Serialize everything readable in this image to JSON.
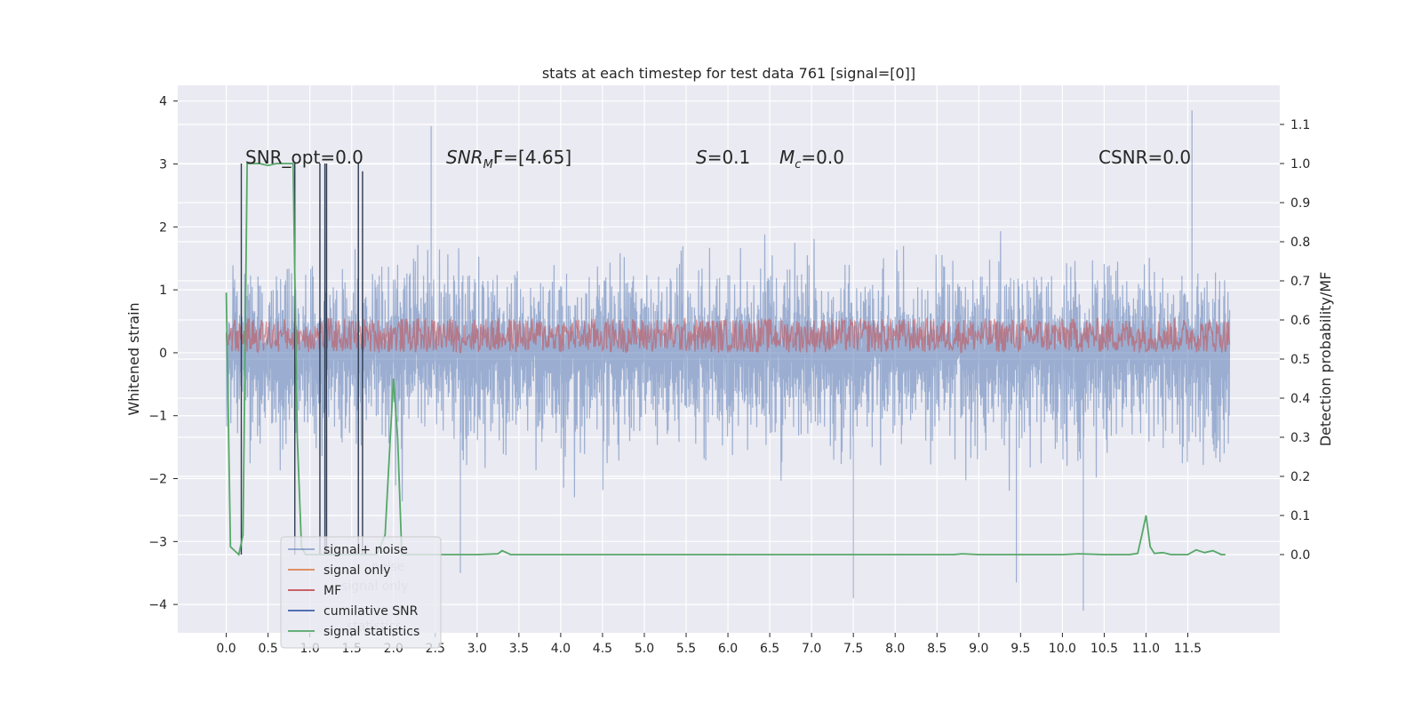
{
  "chart_data": {
    "type": "line",
    "title": "stats at each timestep for test data 761 [signal=[0]]",
    "xlabel": "",
    "ylabel": "Whitened strain",
    "y2label": "Detection probability/MF",
    "xlim": [
      -0.58,
      12.6
    ],
    "ylim": [
      -4.45,
      4.25
    ],
    "y2lim": [
      -0.2,
      1.2
    ],
    "xticks": [
      "0.0",
      "0.5",
      "1.0",
      "1.5",
      "2.0",
      "2.5",
      "3.0",
      "3.5",
      "4.0",
      "4.5",
      "5.0",
      "5.5",
      "6.0",
      "6.5",
      "7.0",
      "7.5",
      "8.0",
      "8.5",
      "9.0",
      "9.5",
      "10.0",
      "10.5",
      "11.0",
      "11.5"
    ],
    "yticks": [
      "4",
      "3",
      "2",
      "1",
      "0",
      "−1",
      "−2",
      "−3",
      "−4"
    ],
    "y2ticks": [
      "1.1",
      "1.0",
      "0.9",
      "0.8",
      "0.7",
      "0.6",
      "0.5",
      "0.4",
      "0.3",
      "0.2",
      "0.1",
      "0.0"
    ],
    "grid": true,
    "legend_position": "lower-left",
    "annotations": {
      "snr_opt": "SNR_opt=0.0",
      "snr_mf_sym": "SNR",
      "snr_mf_sub": "M",
      "snr_mf_rest": "F=[4.65]",
      "s_sym": "S",
      "s_rest": "=0.1",
      "mc_sym": "M",
      "mc_sub": "c",
      "mc_rest": "=0.0",
      "csnr": "CSNR=0.0"
    },
    "legend": [
      {
        "label": "signal+ noise",
        "color": "#4c72b0"
      },
      {
        "label": "signal only",
        "color": "#dd8452"
      },
      {
        "label": "MF",
        "color": "#c44e52"
      },
      {
        "label": "cumilative SNR",
        "color": "#3b5ea8"
      },
      {
        "label": "signal statistics",
        "color": "#55a868"
      }
    ],
    "ghost_legend": [
      "noise",
      "signal only",
      "statistics"
    ],
    "series": [
      {
        "name": "signal+ noise",
        "axis": "left",
        "color": "#4c72b0",
        "t_range": [
          0.0,
          12.0
        ],
        "y_range": [
          -4.1,
          3.85
        ],
        "envelope": {
          "upper_typical": 2.0,
          "lower_typical": -2.3,
          "core_upper": 1.1,
          "core_lower": -1.35
        },
        "peaks": [
          {
            "x": 2.45,
            "y": 3.6
          },
          {
            "x": 11.55,
            "y": 3.85
          },
          {
            "x": 7.5,
            "y": -3.9
          },
          {
            "x": 10.25,
            "y": -4.1
          },
          {
            "x": 9.45,
            "y": -3.65
          },
          {
            "x": 2.8,
            "y": -3.5
          }
        ]
      },
      {
        "name": "MF",
        "axis": "left",
        "color": "#c44e52",
        "t_range": [
          0.0,
          12.0
        ],
        "band": [
          0.0,
          0.55
        ]
      },
      {
        "name": "signal statistics",
        "axis": "right",
        "color": "#55a868",
        "x": [
          0.0,
          0.05,
          0.1,
          0.15,
          0.2,
          0.25,
          0.3,
          0.35,
          0.4,
          0.5,
          0.6,
          0.7,
          0.75,
          0.8,
          0.85,
          0.9,
          0.95,
          1.0,
          1.1,
          1.2,
          1.3,
          1.4,
          1.5,
          1.6,
          1.65,
          1.7,
          1.8,
          1.9,
          2.0,
          2.05,
          2.1,
          2.2,
          2.5,
          3.0,
          3.25,
          3.3,
          3.4,
          3.5,
          4.0,
          5.0,
          6.0,
          7.0,
          8.0,
          8.7,
          8.8,
          9.0,
          10.0,
          10.2,
          10.5,
          10.8,
          10.9,
          10.95,
          11.0,
          11.05,
          11.1,
          11.2,
          11.3,
          11.5,
          11.6,
          11.7,
          11.8,
          11.9,
          11.95
        ],
        "y": [
          0.67,
          0.02,
          0.01,
          0.0,
          0.05,
          1.0,
          1.0,
          1.0,
          1.0,
          0.995,
          1.0,
          1.0,
          1.0,
          1.0,
          0.3,
          0.02,
          0.0,
          0.0,
          0.0,
          0.0,
          0.0,
          0.0,
          0.0,
          0.0,
          0.0,
          0.0,
          0.0,
          0.05,
          0.45,
          0.3,
          0.0,
          0.0,
          0.0,
          0.0,
          0.002,
          0.01,
          0.0,
          0.0,
          0.0,
          0.0,
          0.0,
          0.0,
          0.0,
          0.0,
          0.002,
          0.0,
          0.0,
          0.002,
          0.0,
          0.0,
          0.003,
          0.05,
          0.1,
          0.02,
          0.003,
          0.005,
          0.0,
          0.0,
          0.012,
          0.005,
          0.01,
          0.0,
          0.0
        ]
      }
    ],
    "cumulative_snr_spikes": [
      {
        "x": 0.18,
        "y": 1.0,
        "color": "#2d3a4f"
      },
      {
        "x": 0.82,
        "y": 1.0,
        "color": "#2d3a4f"
      },
      {
        "x": 1.12,
        "y": 1.0,
        "color": "#2d3a4f"
      },
      {
        "x": 1.18,
        "y": 1.0,
        "color": "#2d3a4f"
      },
      {
        "x": 1.2,
        "y": 1.0,
        "color": "#2d3a4f"
      },
      {
        "x": 1.58,
        "y": 1.0,
        "color": "#2d3a4f"
      },
      {
        "x": 1.63,
        "y": 0.98,
        "color": "#2d3a4f"
      }
    ]
  }
}
